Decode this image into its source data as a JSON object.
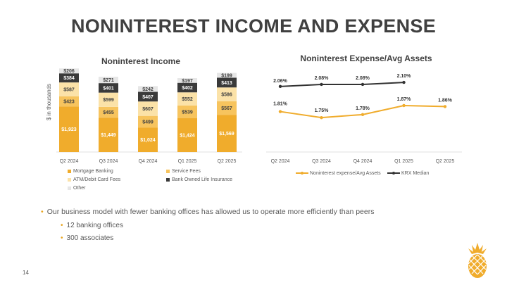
{
  "slide": {
    "title": "NONINTEREST INCOME AND EXPENSE",
    "page_number": "14",
    "bullets": [
      {
        "text": "Our business model with fewer banking offices has allowed us to operate more efficiently than peers",
        "level": 1
      },
      {
        "text": "12 banking offices",
        "level": 2
      },
      {
        "text": "300 associates",
        "level": 2
      }
    ],
    "accent_color": "#e8a520",
    "logo_icon": "pineapple-icon"
  },
  "chart_data": [
    {
      "type": "bar",
      "stacked": true,
      "title": "Noninterest Income",
      "ylabel": "$ in thousands",
      "categories": [
        "Q2 2024",
        "Q3 2024",
        "Q4 2024",
        "Q1 2025",
        "Q2 2025"
      ],
      "series": [
        {
          "name": "Mortgage Banking",
          "color": "#f0ac2c",
          "text_color": "#ffffff",
          "values": [
            1923,
            1449,
            1024,
            1424,
            1569
          ],
          "labels": [
            "$1,923",
            "$1,449",
            "$1,024",
            "$1,424",
            "$1,569"
          ]
        },
        {
          "name": "Service Fees",
          "color": "#f7c45e",
          "text_color": "#404040",
          "values": [
            423,
            455,
            499,
            539,
            567
          ],
          "labels": [
            "$423",
            "$455",
            "$499",
            "$539",
            "$567"
          ]
        },
        {
          "name": "ATM/Debit Card Fees",
          "color": "#fbe2a8",
          "text_color": "#404040",
          "values": [
            587,
            599,
            607,
            552,
            586
          ],
          "labels": [
            "$587",
            "$599",
            "$607",
            "$552",
            "$586"
          ]
        },
        {
          "name": "Bank Owned Life Insurance",
          "color": "#3a3a3a",
          "text_color": "#ffffff",
          "values": [
            384,
            401,
            407,
            402,
            413
          ],
          "labels": [
            "$384",
            "$401",
            "$407",
            "$402",
            "$413"
          ]
        },
        {
          "name": "Other",
          "color": "#e6e6e6",
          "text_color": "#404040",
          "values": [
            206,
            271,
            242,
            197,
            199
          ],
          "labels": [
            "$206",
            "$271",
            "$242",
            "$197",
            "$199"
          ]
        }
      ],
      "legend_position": "bottom"
    },
    {
      "type": "line",
      "title": "Noninterest Expense/Avg Assets",
      "categories": [
        "Q2 2024",
        "Q3 2024",
        "Q4 2024",
        "Q1 2025",
        "Q2 2025"
      ],
      "series": [
        {
          "name": "Noninterest expense/Avg Assets",
          "color": "#f0ac2c",
          "values": [
            1.81,
            1.75,
            1.78,
            1.87,
            1.86
          ],
          "labels": [
            "1.81%",
            "1.75%",
            "1.78%",
            "1.87%",
            "1.86%"
          ]
        },
        {
          "name": "KRX Median",
          "color": "#333333",
          "values": [
            2.06,
            2.08,
            2.08,
            2.1,
            null
          ],
          "labels": [
            "2.06%",
            "2.08%",
            "2.08%",
            "2.10%",
            ""
          ]
        }
      ],
      "legend_position": "bottom"
    }
  ]
}
